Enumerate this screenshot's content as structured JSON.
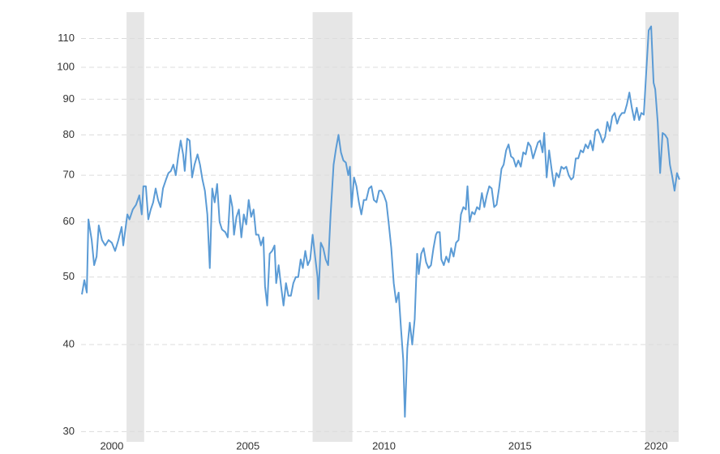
{
  "chart_data": {
    "type": "line",
    "log_scale": true,
    "grid": true,
    "color": "#5b9bd5",
    "shade_color": "#e6e6e6",
    "xlim": [
      1998.87,
      2020.92
    ],
    "xticks": [
      2000,
      2005,
      2010,
      2015,
      2020
    ],
    "ylim": [
      29,
      120
    ],
    "yticks": [
      30,
      40,
      50,
      60,
      70,
      80,
      90,
      100,
      110
    ],
    "shaded_ranges": [
      [
        2000.54,
        2001.19
      ],
      [
        2007.38,
        2008.84
      ],
      [
        2019.61,
        2020.83
      ]
    ],
    "x": [
      1998.9,
      1998.99,
      1999.08,
      1999.14,
      1999.26,
      1999.35,
      1999.44,
      1999.52,
      1999.64,
      1999.76,
      1999.88,
      2000.0,
      2000.12,
      2000.24,
      2000.36,
      2000.42,
      2000.57,
      2000.65,
      2000.77,
      2000.89,
      2001.01,
      2001.1,
      2001.16,
      2001.25,
      2001.34,
      2001.43,
      2001.52,
      2001.61,
      2001.7,
      2001.79,
      2001.88,
      2001.99,
      2002.08,
      2002.17,
      2002.26,
      2002.35,
      2002.44,
      2002.53,
      2002.62,
      2002.68,
      2002.77,
      2002.86,
      2002.95,
      2003.04,
      2003.15,
      2003.24,
      2003.33,
      2003.42,
      2003.51,
      2003.6,
      2003.69,
      2003.78,
      2003.87,
      2003.96,
      2004.05,
      2004.17,
      2004.26,
      2004.35,
      2004.43,
      2004.49,
      2004.58,
      2004.67,
      2004.76,
      2004.85,
      2004.94,
      2005.03,
      2005.12,
      2005.21,
      2005.3,
      2005.39,
      2005.48,
      2005.57,
      2005.63,
      2005.71,
      2005.8,
      2005.89,
      2005.98,
      2006.04,
      2006.13,
      2006.22,
      2006.31,
      2006.4,
      2006.49,
      2006.58,
      2006.67,
      2006.76,
      2006.85,
      2006.94,
      2007.02,
      2007.11,
      2007.2,
      2007.29,
      2007.38,
      2007.47,
      2007.56,
      2007.59,
      2007.68,
      2007.77,
      2007.86,
      2007.95,
      2008.04,
      2008.15,
      2008.24,
      2008.33,
      2008.42,
      2008.51,
      2008.6,
      2008.69,
      2008.75,
      2008.81,
      2008.9,
      2008.99,
      2009.08,
      2009.17,
      2009.26,
      2009.35,
      2009.45,
      2009.54,
      2009.63,
      2009.73,
      2009.82,
      2009.91,
      2010.0,
      2010.09,
      2010.18,
      2010.27,
      2010.36,
      2010.45,
      2010.54,
      2010.63,
      2010.71,
      2010.77,
      2010.86,
      2010.95,
      2011.04,
      2011.13,
      2011.22,
      2011.28,
      2011.37,
      2011.46,
      2011.55,
      2011.64,
      2011.73,
      2011.82,
      2011.91,
      2011.96,
      2012.05,
      2012.11,
      2012.2,
      2012.29,
      2012.38,
      2012.47,
      2012.56,
      2012.65,
      2012.74,
      2012.83,
      2012.92,
      2013.01,
      2013.07,
      2013.15,
      2013.24,
      2013.33,
      2013.42,
      2013.51,
      2013.6,
      2013.69,
      2013.78,
      2013.87,
      2013.96,
      2014.05,
      2014.14,
      2014.23,
      2014.32,
      2014.4,
      2014.49,
      2014.58,
      2014.67,
      2014.76,
      2014.85,
      2014.94,
      2015.03,
      2015.12,
      2015.21,
      2015.3,
      2015.39,
      2015.48,
      2015.57,
      2015.66,
      2015.74,
      2015.83,
      2015.89,
      2015.98,
      2016.07,
      2016.16,
      2016.25,
      2016.34,
      2016.43,
      2016.52,
      2016.61,
      2016.7,
      2016.79,
      2016.88,
      2016.96,
      2017.05,
      2017.14,
      2017.23,
      2017.32,
      2017.41,
      2017.5,
      2017.59,
      2017.68,
      2017.77,
      2017.86,
      2017.95,
      2018.04,
      2018.13,
      2018.21,
      2018.3,
      2018.39,
      2018.48,
      2018.57,
      2018.66,
      2018.75,
      2018.84,
      2018.93,
      2019.02,
      2019.11,
      2019.2,
      2019.29,
      2019.38,
      2019.46,
      2019.55,
      2019.64,
      2019.73,
      2019.82,
      2019.91,
      2019.97,
      2020.06,
      2020.15,
      2020.24,
      2020.33,
      2020.42,
      2020.51,
      2020.6,
      2020.68,
      2020.77,
      2020.86
    ],
    "values": [
      47.2,
      49.5,
      47.5,
      60.5,
      56.5,
      52,
      53.5,
      59.3,
      56.5,
      55.5,
      56.5,
      56,
      54.5,
      56.5,
      59,
      55.5,
      61.5,
      60.5,
      62.5,
      63.5,
      65.5,
      61.5,
      67.5,
      67.5,
      60.5,
      62.5,
      64,
      67,
      64.5,
      63,
      67,
      69,
      70.5,
      71,
      72.5,
      70,
      74.5,
      78.5,
      75,
      71,
      79,
      78.5,
      69.5,
      72.5,
      75,
      72.5,
      69,
      66.5,
      61.5,
      51.5,
      67,
      64,
      68,
      60,
      58.5,
      58,
      57,
      65.5,
      63,
      57.5,
      61,
      62.5,
      57,
      61.5,
      59.5,
      64.5,
      61,
      62.5,
      57.5,
      57.5,
      55.5,
      57,
      48.5,
      45.5,
      54,
      54.5,
      55.5,
      49,
      52,
      48.5,
      45.5,
      49,
      47,
      47,
      49,
      50,
      50,
      53,
      51.5,
      54.5,
      52,
      53,
      57.5,
      53.5,
      50,
      46.5,
      56,
      55,
      53,
      52,
      61.5,
      72.5,
      76.5,
      80,
      75.5,
      73.5,
      73,
      70,
      72,
      63,
      69.5,
      67.5,
      64,
      61.5,
      64.5,
      64.5,
      67,
      67.5,
      64.5,
      64,
      66.5,
      66.5,
      65.5,
      64,
      59.5,
      55,
      49,
      46,
      47.5,
      42,
      38,
      31.5,
      39.5,
      43,
      40,
      43.5,
      54,
      50.5,
      54,
      55,
      52.5,
      51.5,
      52,
      55,
      57.5,
      58,
      58,
      53,
      52,
      53.5,
      52.5,
      55,
      53.5,
      56,
      56.5,
      61.5,
      63,
      62.5,
      67.5,
      60,
      62,
      61.5,
      63,
      62.5,
      66,
      63,
      65.5,
      67.5,
      67,
      63,
      63.5,
      67,
      71.5,
      72.5,
      76,
      77.5,
      74.5,
      74,
      72,
      73.5,
      72,
      75.5,
      75,
      78,
      77,
      74,
      76,
      78,
      78.5,
      75.5,
      80.5,
      69.5,
      76,
      71.5,
      67.5,
      70.5,
      69.5,
      72,
      71.5,
      72,
      70,
      69,
      69.5,
      74,
      74,
      76,
      75.5,
      77.5,
      76.5,
      78.5,
      76,
      81,
      81.5,
      80,
      78,
      79.5,
      83.5,
      81,
      85,
      86,
      83,
      85,
      86,
      86,
      88.5,
      92,
      87.5,
      84,
      87.5,
      84,
      86,
      85.5,
      98.5,
      113,
      114.5,
      95,
      93,
      83.5,
      70.5,
      80.5,
      80,
      79,
      72.5,
      69.5,
      66.5,
      70.5,
      69
    ]
  }
}
